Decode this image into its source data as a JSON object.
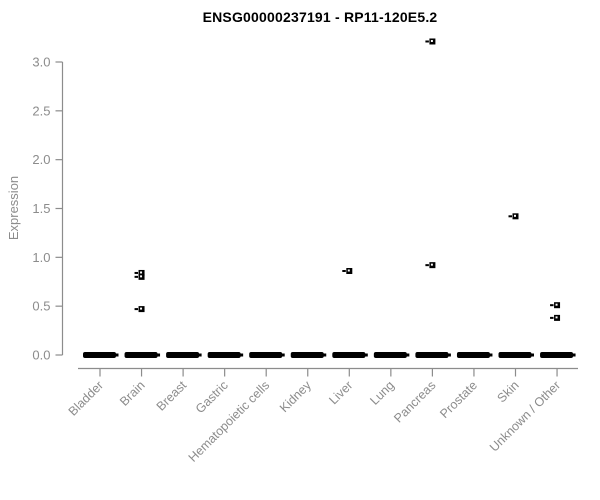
{
  "chart_data": {
    "type": "scatter",
    "title": "ENSG00000237191 - RP11-120E5.2",
    "ylabel": "Expression",
    "xlabel": "",
    "ylim": [
      0.0,
      3.0
    ],
    "yticks": [
      "0.0",
      "0.5",
      "1.0",
      "1.5",
      "2.0",
      "2.5",
      "3.0"
    ],
    "grid": "off",
    "legend": "none",
    "categories": [
      "Bladder",
      "Brain",
      "Breast",
      "Gastric",
      "Hematopoietic cells",
      "Kidney",
      "Liver",
      "Lung",
      "Pancreas",
      "Prostate",
      "Skin",
      "Unknown / Other"
    ],
    "zero_cluster_note": "every category has a dense cluster of points at expression 0.0 forming a thick dash",
    "zero_cluster_value": 0.0,
    "outliers": [
      {
        "category": "Brain",
        "value": 0.84
      },
      {
        "category": "Brain",
        "value": 0.8
      },
      {
        "category": "Brain",
        "value": 0.47
      },
      {
        "category": "Liver",
        "value": 0.86
      },
      {
        "category": "Pancreas",
        "value": 3.21
      },
      {
        "category": "Pancreas",
        "value": 0.92
      },
      {
        "category": "Skin",
        "value": 1.42
      },
      {
        "category": "Unknown / Other",
        "value": 0.51
      },
      {
        "category": "Unknown / Other",
        "value": 0.38
      }
    ]
  },
  "colors": {
    "background": "#ffffff",
    "point": "#000000",
    "point_hole": "#ffffff",
    "axis_line": "#8c8c8c",
    "tick_text": "#8c8c8c",
    "title_text": "#000000"
  }
}
